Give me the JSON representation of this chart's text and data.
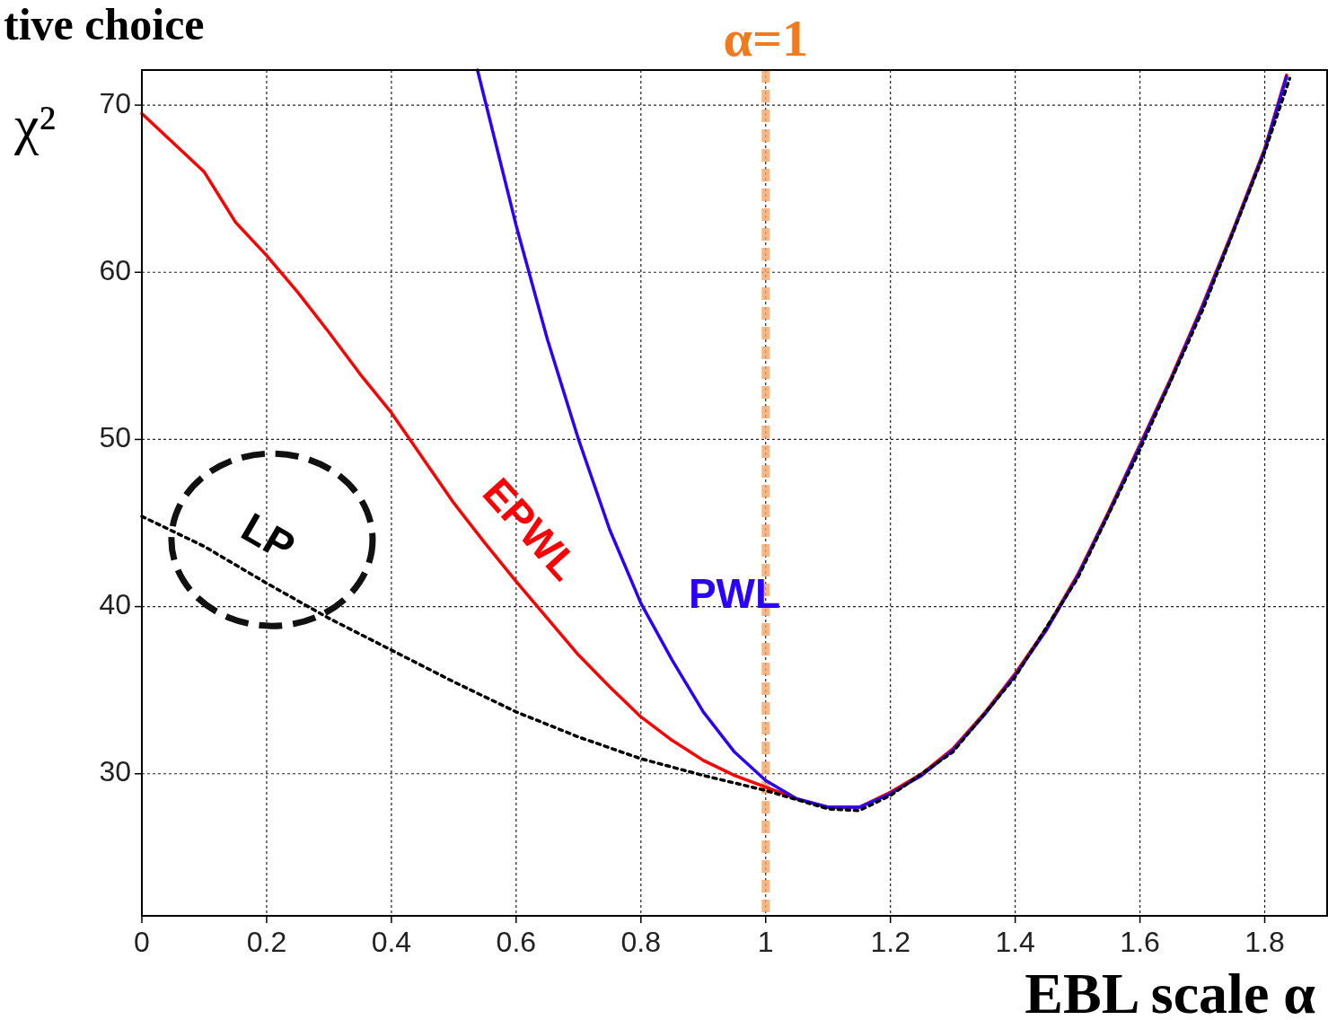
{
  "chart_data": {
    "type": "line",
    "title": "tive choice",
    "xlabel": "EBL scale α",
    "ylabel": "χ²",
    "xlim": [
      0,
      1.9
    ],
    "ylim": [
      21.5,
      72.1
    ],
    "xticks": [
      0,
      0.2,
      0.4,
      0.6,
      0.8,
      1,
      1.2,
      1.4,
      1.6,
      1.8
    ],
    "yticks": [
      30,
      40,
      50,
      60,
      70
    ],
    "grid": true,
    "marker": "none",
    "ref_lines": [
      {
        "axis": "x",
        "value": 1,
        "label": "α=1",
        "color": "#f5a66a",
        "line_style": "dashed"
      }
    ],
    "series": [
      {
        "name": "EPWL",
        "color": "#ff0000",
        "line_style": "solid",
        "x": [
          0,
          0.1,
          0.15,
          0.2,
          0.25,
          0.3,
          0.35,
          0.4,
          0.45,
          0.5,
          0.55,
          0.6,
          0.65,
          0.7,
          0.75,
          0.8,
          0.85,
          0.9,
          0.95,
          1,
          1.05,
          1.1,
          1.15,
          1.2,
          1.25,
          1.3,
          1.35,
          1.4,
          1.45,
          1.5,
          1.55,
          1.6,
          1.65,
          1.7,
          1.75,
          1.8,
          1.835
        ],
        "values": [
          69.5,
          66,
          63,
          61,
          58.8,
          56.4,
          53.9,
          51.6,
          48.9,
          46.2,
          43.8,
          41.5,
          39.3,
          37.1,
          35.2,
          33.4,
          32,
          30.8,
          29.9,
          29.2,
          28.5,
          28,
          28,
          28.9,
          30,
          31.5,
          33.6,
          36,
          38.7,
          41.9,
          45.7,
          49.7,
          53.7,
          58,
          62.6,
          67.4,
          71.8
        ]
      },
      {
        "name": "PWL",
        "color": "#2a00ff",
        "line_style": "solid",
        "x": [
          0.538,
          0.6,
          0.65,
          0.7,
          0.75,
          0.8,
          0.85,
          0.9,
          0.95,
          1,
          1.05,
          1.1,
          1.15,
          1.2,
          1.25,
          1.3,
          1.35,
          1.4,
          1.45,
          1.5,
          1.55,
          1.6,
          1.65,
          1.7,
          1.75,
          1.8,
          1.835
        ],
        "values": [
          72.1,
          62.8,
          56,
          50,
          44.6,
          40.2,
          36.8,
          33.7,
          31.3,
          29.6,
          28.5,
          28,
          28,
          28.8,
          29.9,
          31.4,
          33.5,
          35.9,
          38.6,
          41.8,
          45.6,
          49.6,
          53.6,
          57.9,
          62.5,
          67.3,
          71.7
        ]
      },
      {
        "name": "LP",
        "color": "#000000",
        "line_style": "dotted",
        "x": [
          0,
          0.1,
          0.2,
          0.3,
          0.4,
          0.5,
          0.6,
          0.7,
          0.8,
          0.9,
          1,
          1.1,
          1.15,
          1.2,
          1.3,
          1.4,
          1.5,
          1.6,
          1.7,
          1.8,
          1.84
        ],
        "values": [
          45.4,
          43.6,
          41.4,
          39.3,
          37.4,
          35.5,
          33.7,
          32.2,
          30.9,
          29.9,
          29,
          27.9,
          27.8,
          28.7,
          31.3,
          35.8,
          41.7,
          49.4,
          57.7,
          67.2,
          71.6
        ]
      }
    ]
  }
}
